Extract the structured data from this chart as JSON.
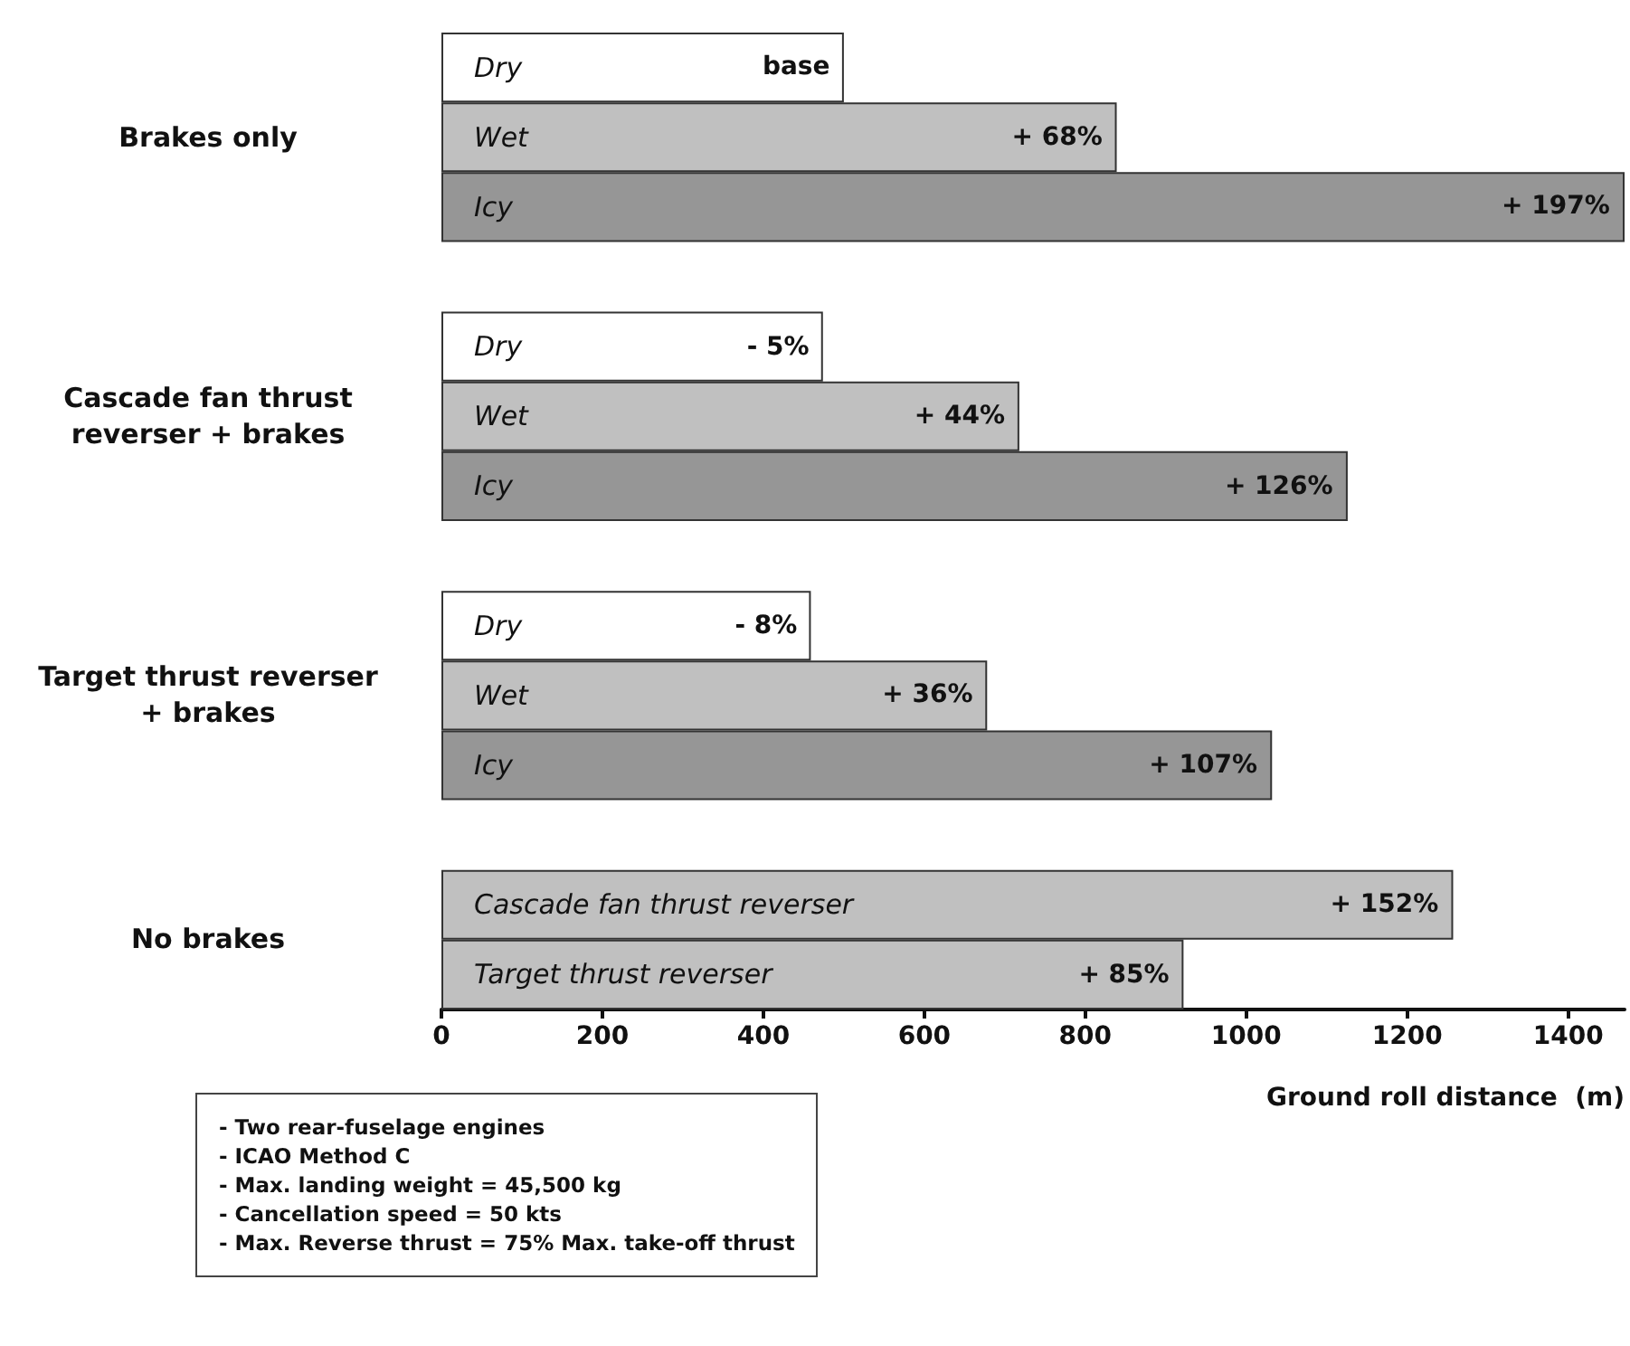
{
  "chart_data": {
    "type": "bar",
    "orientation": "horizontal",
    "categories": [
      "Dry",
      "Wet",
      "Icy",
      null,
      "Dry",
      "Wet",
      "Icy",
      null,
      "Dry",
      "Wet",
      "Icy",
      null,
      "Cascade fan thrust reverser",
      "Target thrust reverser"
    ],
    "values": [
      500,
      839,
      1470,
      null,
      474,
      718,
      1126,
      null,
      459,
      678,
      1032,
      null,
      1257,
      922
    ],
    "colors": [
      "#ffffff",
      "#c0c0c0",
      "#969696",
      null,
      "#ffffff",
      "#c0c0c0",
      "#969696",
      null,
      "#ffffff",
      "#c0c0c0",
      "#969696",
      null,
      "#c0c0c0",
      "#c0c0c0"
    ],
    "xlabel": "Ground roll distance  (m)",
    "xlim": [
      0,
      1470
    ],
    "xticks": [
      0,
      200,
      400,
      600,
      800,
      1000,
      1200,
      1400
    ],
    "grid": false,
    "annotations": [
      "base",
      "+ 68%",
      "+ 197%",
      "- 5%",
      "+ 44%",
      "+ 126%",
      "- 8%",
      "+ 36%",
      "+ 107%",
      "+ 152%",
      "+ 85%",
      "Brakes only",
      "Cascade fan thrust reverser + brakes",
      "Target thrust reverser + brakes",
      "No brakes",
      "- Two rear-fuselage engines\n- ICAO Method C\n- Max. landing weight = 45,500 kg\n- Cancellation speed = 50 kts\n- Max. Reverse thrust = 75% Max. take-off thrust"
    ]
  }
}
